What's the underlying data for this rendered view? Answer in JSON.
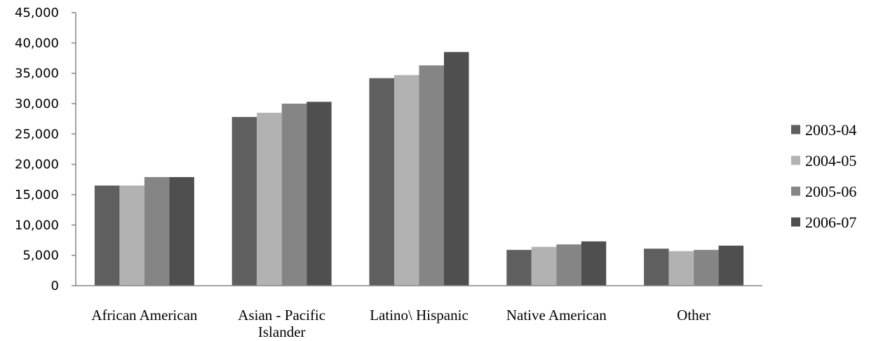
{
  "chart_data": {
    "type": "bar",
    "title": "",
    "xlabel": "",
    "ylabel": "",
    "categories": [
      "African American",
      "Asian - Pacific Islander",
      "Latino\\ Hispanic",
      "Native American",
      "Other"
    ],
    "category_lines": [
      [
        "African American"
      ],
      [
        "Asian - Pacific",
        "Islander"
      ],
      [
        "Latino\\ Hispanic"
      ],
      [
        "Native American"
      ],
      [
        "Other"
      ]
    ],
    "y_tick_labels": [
      "0",
      "5,000",
      "10,000",
      "15,000",
      "20,000",
      "25,000",
      "30,000",
      "35,000",
      "40,000",
      "45,000"
    ],
    "ylim": [
      0,
      45000
    ],
    "y_step": 5000,
    "grid": false,
    "legend_position": "right",
    "series": [
      {
        "name": "2003-04",
        "color": "#5f5f5f",
        "values": [
          16500,
          27800,
          34200,
          5900,
          6100
        ]
      },
      {
        "name": "2004-05",
        "color": "#b2b2b2",
        "values": [
          16500,
          28500,
          34700,
          6400,
          5700
        ]
      },
      {
        "name": "2005-06",
        "color": "#858585",
        "values": [
          17900,
          30000,
          36300,
          6800,
          5900
        ]
      },
      {
        "name": "2006-07",
        "color": "#4f4f4f",
        "values": [
          17900,
          30300,
          38500,
          7300,
          6600
        ]
      }
    ]
  }
}
